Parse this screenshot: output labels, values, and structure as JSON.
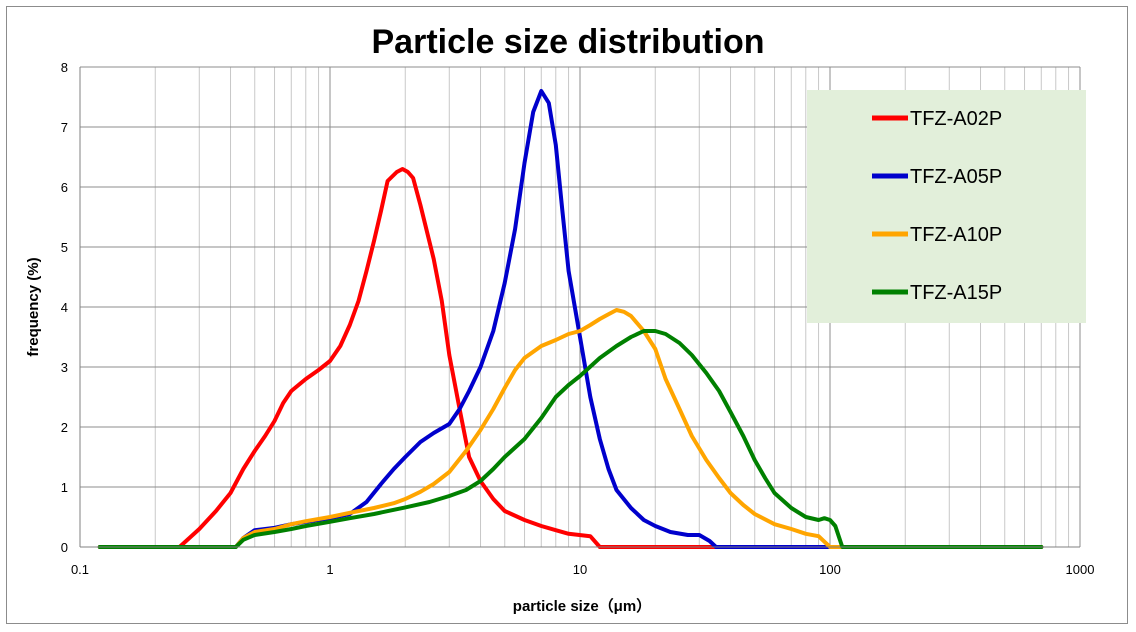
{
  "chart_data": {
    "type": "line",
    "title": "Particle size distribution",
    "xlabel": "particle size（μm）",
    "ylabel": "frequency (%)",
    "x_scale": "log",
    "xlim": [
      0.1,
      1000
    ],
    "ylim": [
      0,
      8
    ],
    "x_ticks": [
      "0.1",
      "1",
      "10",
      "100",
      "1000"
    ],
    "y_ticks": [
      "0",
      "1",
      "2",
      "3",
      "4",
      "5",
      "6",
      "7",
      "8"
    ],
    "grid": true,
    "legend_position": "top-right",
    "legend_background": "#e2efda",
    "series": [
      {
        "name": "TFZ-A02P",
        "color": "#ff0000",
        "points": [
          [
            0.12,
            0
          ],
          [
            0.25,
            0
          ],
          [
            0.3,
            0.3
          ],
          [
            0.35,
            0.6
          ],
          [
            0.4,
            0.9
          ],
          [
            0.45,
            1.3
          ],
          [
            0.5,
            1.6
          ],
          [
            0.55,
            1.85
          ],
          [
            0.6,
            2.1
          ],
          [
            0.65,
            2.4
          ],
          [
            0.7,
            2.6
          ],
          [
            0.8,
            2.8
          ],
          [
            0.9,
            2.95
          ],
          [
            1.0,
            3.1
          ],
          [
            1.1,
            3.35
          ],
          [
            1.2,
            3.7
          ],
          [
            1.3,
            4.1
          ],
          [
            1.4,
            4.6
          ],
          [
            1.5,
            5.1
          ],
          [
            1.6,
            5.6
          ],
          [
            1.7,
            6.1
          ],
          [
            1.85,
            6.25
          ],
          [
            1.95,
            6.3
          ],
          [
            2.05,
            6.25
          ],
          [
            2.15,
            6.15
          ],
          [
            2.3,
            5.7
          ],
          [
            2.6,
            4.8
          ],
          [
            2.8,
            4.1
          ],
          [
            3.0,
            3.2
          ],
          [
            3.3,
            2.3
          ],
          [
            3.6,
            1.5
          ],
          [
            4.0,
            1.1
          ],
          [
            4.5,
            0.8
          ],
          [
            5.0,
            0.6
          ],
          [
            6.0,
            0.45
          ],
          [
            7.0,
            0.35
          ],
          [
            8.0,
            0.28
          ],
          [
            9.0,
            0.22
          ],
          [
            11,
            0.18
          ],
          [
            12,
            0
          ],
          [
            100,
            0
          ],
          [
            700,
            0
          ]
        ]
      },
      {
        "name": "TFZ-A05P",
        "color": "#0000cc",
        "points": [
          [
            0.12,
            0
          ],
          [
            0.42,
            0
          ],
          [
            0.45,
            0.15
          ],
          [
            0.5,
            0.28
          ],
          [
            0.6,
            0.32
          ],
          [
            0.7,
            0.38
          ],
          [
            0.8,
            0.42
          ],
          [
            1.0,
            0.48
          ],
          [
            1.2,
            0.55
          ],
          [
            1.4,
            0.75
          ],
          [
            1.6,
            1.05
          ],
          [
            1.8,
            1.3
          ],
          [
            2.0,
            1.5
          ],
          [
            2.3,
            1.75
          ],
          [
            2.6,
            1.9
          ],
          [
            3.0,
            2.05
          ],
          [
            3.3,
            2.3
          ],
          [
            3.6,
            2.6
          ],
          [
            4.0,
            3.0
          ],
          [
            4.5,
            3.6
          ],
          [
            5.0,
            4.4
          ],
          [
            5.5,
            5.3
          ],
          [
            6.0,
            6.4
          ],
          [
            6.5,
            7.25
          ],
          [
            7.0,
            7.6
          ],
          [
            7.5,
            7.4
          ],
          [
            8.0,
            6.7
          ],
          [
            8.5,
            5.6
          ],
          [
            9.0,
            4.6
          ],
          [
            10,
            3.5
          ],
          [
            11,
            2.5
          ],
          [
            12,
            1.8
          ],
          [
            13,
            1.3
          ],
          [
            14,
            0.95
          ],
          [
            16,
            0.65
          ],
          [
            18,
            0.45
          ],
          [
            20,
            0.35
          ],
          [
            23,
            0.25
          ],
          [
            27,
            0.2
          ],
          [
            30,
            0.2
          ],
          [
            33,
            0.1
          ],
          [
            35,
            0
          ],
          [
            100,
            0
          ],
          [
            700,
            0
          ]
        ]
      },
      {
        "name": "TFZ-A10P",
        "color": "#ffa500",
        "points": [
          [
            0.12,
            0
          ],
          [
            0.42,
            0
          ],
          [
            0.45,
            0.15
          ],
          [
            0.5,
            0.25
          ],
          [
            0.6,
            0.3
          ],
          [
            0.7,
            0.38
          ],
          [
            0.8,
            0.43
          ],
          [
            1.0,
            0.5
          ],
          [
            1.2,
            0.57
          ],
          [
            1.5,
            0.65
          ],
          [
            1.8,
            0.73
          ],
          [
            2.0,
            0.8
          ],
          [
            2.3,
            0.92
          ],
          [
            2.6,
            1.05
          ],
          [
            3.0,
            1.25
          ],
          [
            3.5,
            1.6
          ],
          [
            4.0,
            1.95
          ],
          [
            4.5,
            2.3
          ],
          [
            5.0,
            2.65
          ],
          [
            5.5,
            2.95
          ],
          [
            6.0,
            3.15
          ],
          [
            7.0,
            3.35
          ],
          [
            8.0,
            3.45
          ],
          [
            9.0,
            3.55
          ],
          [
            10,
            3.6
          ],
          [
            11,
            3.7
          ],
          [
            12,
            3.8
          ],
          [
            13,
            3.88
          ],
          [
            14,
            3.95
          ],
          [
            15,
            3.92
          ],
          [
            16,
            3.85
          ],
          [
            18,
            3.6
          ],
          [
            20,
            3.3
          ],
          [
            22,
            2.8
          ],
          [
            25,
            2.3
          ],
          [
            28,
            1.85
          ],
          [
            32,
            1.45
          ],
          [
            36,
            1.15
          ],
          [
            40,
            0.9
          ],
          [
            45,
            0.7
          ],
          [
            50,
            0.55
          ],
          [
            60,
            0.38
          ],
          [
            70,
            0.3
          ],
          [
            80,
            0.22
          ],
          [
            90,
            0.18
          ],
          [
            100,
            0
          ],
          [
            700,
            0
          ]
        ]
      },
      {
        "name": "TFZ-A15P",
        "color": "#008000",
        "points": [
          [
            0.12,
            0
          ],
          [
            0.42,
            0
          ],
          [
            0.45,
            0.12
          ],
          [
            0.5,
            0.2
          ],
          [
            0.6,
            0.25
          ],
          [
            0.7,
            0.3
          ],
          [
            0.8,
            0.35
          ],
          [
            1.0,
            0.42
          ],
          [
            1.2,
            0.48
          ],
          [
            1.5,
            0.55
          ],
          [
            1.8,
            0.62
          ],
          [
            2.0,
            0.66
          ],
          [
            2.5,
            0.75
          ],
          [
            3.0,
            0.85
          ],
          [
            3.5,
            0.95
          ],
          [
            4.0,
            1.1
          ],
          [
            4.5,
            1.3
          ],
          [
            5.0,
            1.5
          ],
          [
            6.0,
            1.8
          ],
          [
            7.0,
            2.15
          ],
          [
            8.0,
            2.5
          ],
          [
            9.0,
            2.7
          ],
          [
            10,
            2.85
          ],
          [
            12,
            3.15
          ],
          [
            14,
            3.35
          ],
          [
            16,
            3.5
          ],
          [
            18,
            3.6
          ],
          [
            20,
            3.6
          ],
          [
            22,
            3.55
          ],
          [
            25,
            3.4
          ],
          [
            28,
            3.2
          ],
          [
            32,
            2.9
          ],
          [
            36,
            2.6
          ],
          [
            40,
            2.25
          ],
          [
            45,
            1.85
          ],
          [
            50,
            1.45
          ],
          [
            55,
            1.15
          ],
          [
            60,
            0.9
          ],
          [
            70,
            0.65
          ],
          [
            80,
            0.5
          ],
          [
            90,
            0.45
          ],
          [
            95,
            0.48
          ],
          [
            100,
            0.45
          ],
          [
            105,
            0.35
          ],
          [
            112,
            0
          ],
          [
            700,
            0
          ]
        ]
      }
    ]
  }
}
